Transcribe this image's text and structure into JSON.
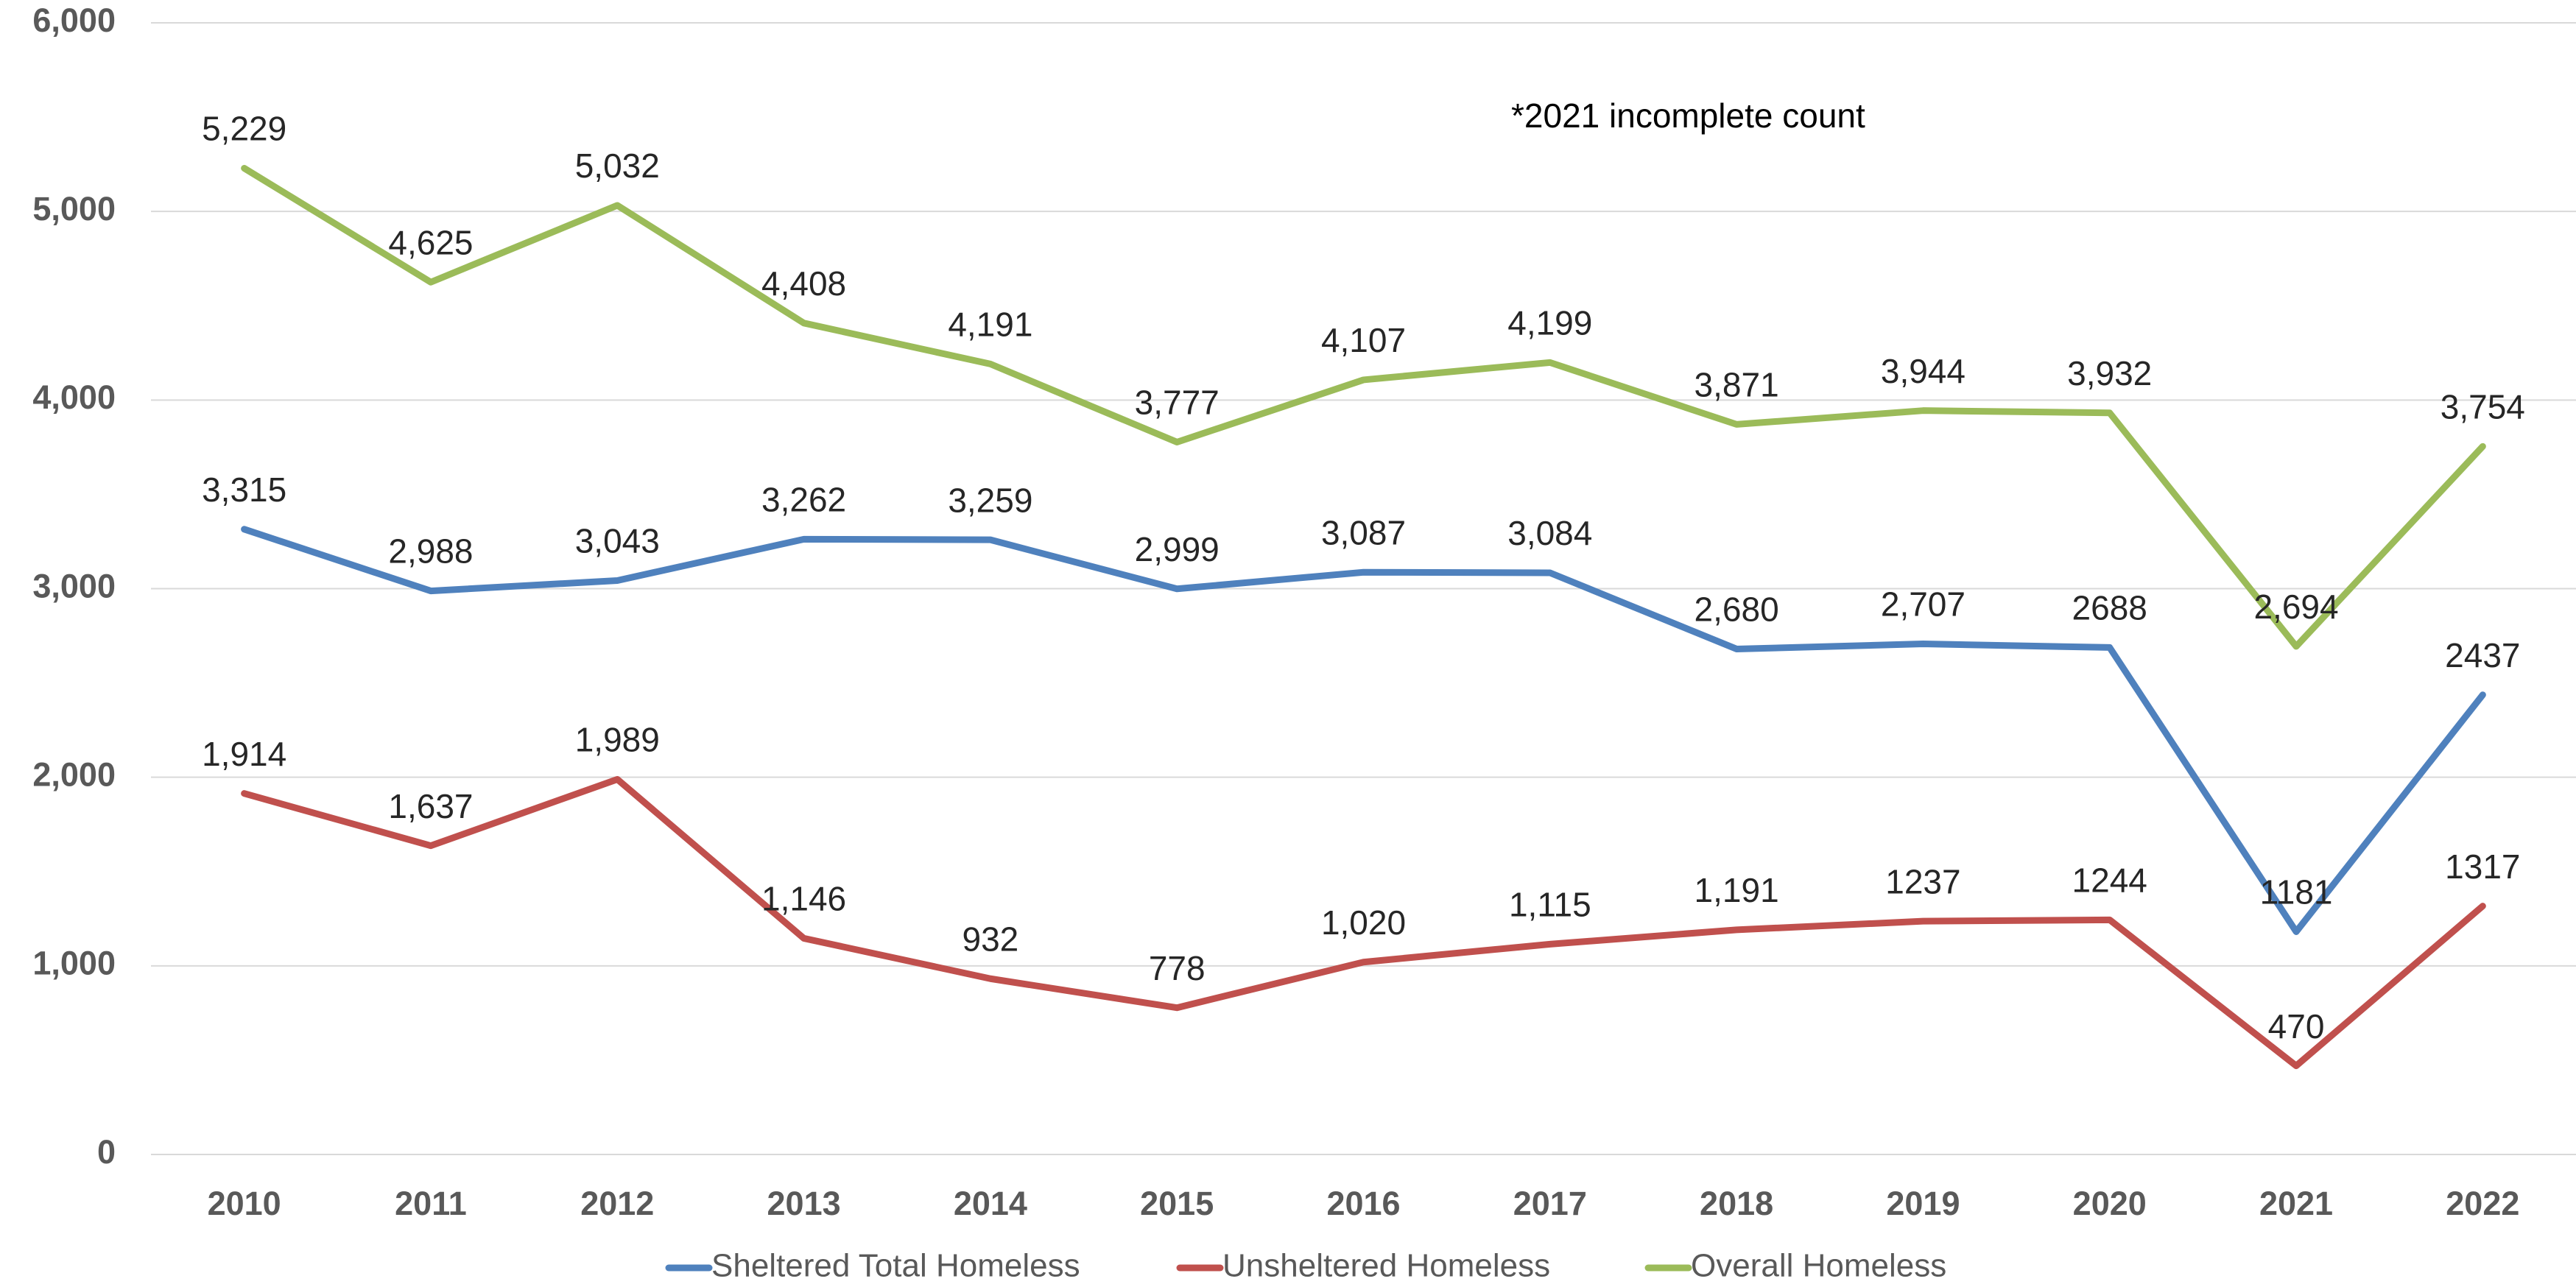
{
  "chart_data": {
    "type": "line",
    "annotation": "*2021 incomplete count",
    "categories": [
      "2010",
      "2011",
      "2012",
      "2013",
      "2014",
      "2015",
      "2016",
      "2017",
      "2018",
      "2019",
      "2020",
      "2021",
      "2022"
    ],
    "series": [
      {
        "name": "Sheltered Total Homeless",
        "color": "#4f81bd",
        "values": [
          3315,
          2988,
          3043,
          3262,
          3259,
          2999,
          3087,
          3084,
          2680,
          2707,
          2688,
          1181,
          2437
        ],
        "value_labels": [
          "3,315",
          "2,988",
          "3,043",
          "3,262",
          "3,259",
          "2,999",
          "3,087",
          "3,084",
          "2,680",
          "2,707",
          "2688",
          "1181",
          "2437"
        ]
      },
      {
        "name": "Unsheltered Homeless",
        "color": "#c0504d",
        "values": [
          1914,
          1637,
          1989,
          1146,
          932,
          778,
          1020,
          1115,
          1191,
          1237,
          1244,
          470,
          1317
        ],
        "value_labels": [
          "1,914",
          "1,637",
          "1,989",
          "1,146",
          "932",
          "778",
          "1,020",
          "1,115",
          "1,191",
          "1237",
          "1244",
          "470",
          "1317"
        ]
      },
      {
        "name": "Overall Homeless",
        "color": "#9bbb59",
        "values": [
          5229,
          4625,
          5032,
          4408,
          4191,
          3777,
          4107,
          4199,
          3871,
          3944,
          3932,
          2694,
          3754
        ],
        "value_labels": [
          "5,229",
          "4,625",
          "5,032",
          "4,408",
          "4,191",
          "3,777",
          "4,107",
          "4,199",
          "3,871",
          "3,944",
          "3,932",
          "2,694",
          "3,754"
        ]
      }
    ],
    "ylim": [
      0,
      6000
    ],
    "yticks": [
      0,
      {
        "value": 1000,
        "label": "1,000"
      },
      {
        "value": 2000,
        "label": "2,000"
      },
      {
        "value": 3000,
        "label": "3,000"
      },
      {
        "value": 4000,
        "label": "4,000"
      },
      {
        "value": 5000,
        "label": "5,000"
      },
      {
        "value": 6000,
        "label": "6,000"
      }
    ],
    "grid": true,
    "legend": "bottom"
  }
}
